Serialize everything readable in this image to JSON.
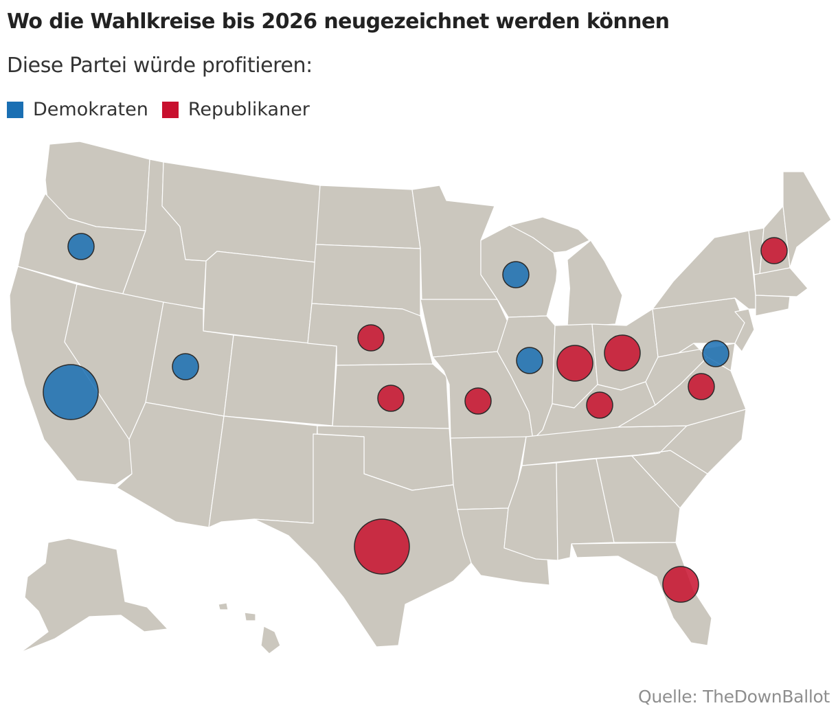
{
  "title": "Wo die Wahlkreise bis 2026 neugezeichnet werden können",
  "subtitle": "Diese Partei würde profitieren:",
  "legend": [
    {
      "label": "Demokraten",
      "color": "#1a6fb3"
    },
    {
      "label": "Republikaner",
      "color": "#c8102e"
    }
  ],
  "source": "Quelle: TheDownBallot",
  "map_region": "USA",
  "bubbles": [
    {
      "state": "California",
      "party": "Demokraten",
      "size": 5
    },
    {
      "state": "Oregon",
      "party": "Demokraten",
      "size": 1
    },
    {
      "state": "Utah",
      "party": "Demokraten",
      "size": 1
    },
    {
      "state": "Wisconsin",
      "party": "Demokraten",
      "size": 1
    },
    {
      "state": "Illinois",
      "party": "Demokraten",
      "size": 1
    },
    {
      "state": "Maryland",
      "party": "Demokraten",
      "size": 1
    },
    {
      "state": "Texas",
      "party": "Republikaner",
      "size": 5
    },
    {
      "state": "Florida",
      "party": "Republikaner",
      "size": 2
    },
    {
      "state": "Ohio",
      "party": "Republikaner",
      "size": 2
    },
    {
      "state": "Indiana",
      "party": "Republikaner",
      "size": 2
    },
    {
      "state": "Nebraska",
      "party": "Republikaner",
      "size": 1
    },
    {
      "state": "Kansas",
      "party": "Republikaner",
      "size": 1
    },
    {
      "state": "Missouri",
      "party": "Republikaner",
      "size": 1
    },
    {
      "state": "Kentucky",
      "party": "Republikaner",
      "size": 1
    },
    {
      "state": "Virginia",
      "party": "Republikaner",
      "size": 1
    },
    {
      "state": "New Hampshire",
      "party": "Republikaner",
      "size": 1
    }
  ]
}
